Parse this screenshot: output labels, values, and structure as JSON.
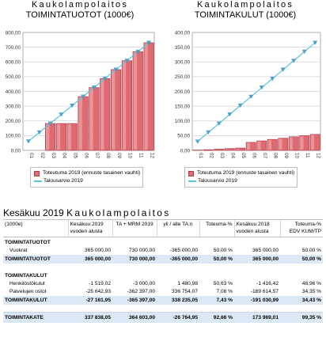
{
  "charts": [
    {
      "title1": "Kaukolampolaitos",
      "title2": "TOIMINTATUOTOT (1000€)"
    },
    {
      "title1": "Kaukolampolaitos",
      "title2": "TOIMINTAKULUT (1000€)"
    }
  ],
  "legend": {
    "bar_label": "Toteutuma 2019 (ennuste tasainen vauhti)",
    "line_label": "Talousarvio 2019"
  },
  "colors": {
    "bar_fill": "#e06a72",
    "bar_dark": "#b03a48",
    "line": "#5bc4e0",
    "marker": "#4aa8d0"
  },
  "chart_data": [
    {
      "type": "bar",
      "title": "TOIMINTATUOTOT (1000€)",
      "categories": [
        "01",
        "02",
        "03",
        "04",
        "05",
        "06",
        "07",
        "08",
        "09",
        "10",
        "11",
        "12"
      ],
      "ylim": [
        0,
        800
      ],
      "yticks": [
        "0,00",
        "100,00",
        "200,00",
        "300,00",
        "400,00",
        "500,00",
        "600,00",
        "700,00",
        "800,00"
      ],
      "grid": true,
      "series": [
        {
          "name": "Toteutuma 2019 (ennuste tasainen vauhti)",
          "type": "bar",
          "values": [
            0,
            0,
            182,
            182,
            182,
            365,
            426,
            487,
            548,
            608,
            669,
            730
          ]
        },
        {
          "name": "Talousarvio 2019",
          "type": "line",
          "values": [
            61,
            122,
            182,
            243,
            304,
            365,
            426,
            487,
            548,
            608,
            669,
            730
          ]
        }
      ]
    },
    {
      "type": "bar",
      "title": "TOIMINTAKULUT (1000€)",
      "categories": [
        "01",
        "02",
        "03",
        "04",
        "05",
        "06",
        "07",
        "08",
        "09",
        "10",
        "11",
        "12"
      ],
      "ylim": [
        0,
        400
      ],
      "yticks": [
        "0,00",
        "50,00",
        "100,00",
        "150,00",
        "200,00",
        "250,00",
        "300,00",
        "350,00",
        "400,00"
      ],
      "grid": true,
      "series": [
        {
          "name": "Toteutuma 2019 (ennuste tasainen vauhti)",
          "type": "bar",
          "values": [
            1,
            2,
            4,
            6,
            8,
            27,
            32,
            37,
            41,
            46,
            50,
            54
          ]
        },
        {
          "name": "Talousarvio 2019",
          "type": "line",
          "values": [
            30,
            61,
            91,
            122,
            152,
            182,
            213,
            243,
            274,
            304,
            335,
            365
          ]
        }
      ]
    }
  ],
  "report": {
    "title_prefix": "Kesäkuu 2019 ",
    "title_name": "Kaukolampolaitos",
    "headers": [
      "(1000e)",
      "Kesäkuu 2019\nvuoden alusta",
      "TA + MRM 2019",
      "yli / alle TA:n",
      "Toteuma-%",
      "Kesäkuu 2018\nvuoden alusta",
      "Toteuma-%\nEDV KUM/TP"
    ],
    "rows": [
      {
        "kind": "sec",
        "cells": [
          "TOIMINTATUOTOT",
          "",
          "",
          "",
          "",
          "",
          ""
        ]
      },
      {
        "kind": "item",
        "cells": [
          "Vuokrat",
          "365 000,00",
          "730 000,00",
          "-365 000,00",
          "50,00 %",
          "365 000,00",
          "50,00 %"
        ]
      },
      {
        "kind": "total",
        "cells": [
          "TOIMINTATUOTOT",
          "365 000,00",
          "730 000,00",
          "-365 000,00",
          "50,00 %",
          "365 000,00",
          "50,00 %"
        ]
      },
      {
        "kind": "gap",
        "cells": [
          "",
          "",
          "",
          "",
          "",
          "",
          ""
        ]
      },
      {
        "kind": "sec",
        "cells": [
          "TOIMINTAKULUT",
          "",
          "",
          "",
          "",
          "",
          ""
        ]
      },
      {
        "kind": "item",
        "cells": [
          "Henkilöstökulut",
          "-1 519,02",
          "-3 000,00",
          "1 480,98",
          "50,63 %",
          "-1 416,42",
          "48,96 %"
        ]
      },
      {
        "kind": "item",
        "cells": [
          "Palvelujen ostot",
          "-25 642,93",
          "-362 397,00",
          "336 754,07",
          "7,08 %",
          "-189 614,57",
          "34,35 %"
        ]
      },
      {
        "kind": "total",
        "cells": [
          "TOIMINTAKULUT",
          "-27 161,95",
          "-365 397,00",
          "338 235,05",
          "7,43 %",
          "-191 030,99",
          "34,43 %"
        ]
      },
      {
        "kind": "gap",
        "cells": [
          "",
          "",
          "",
          "",
          "",
          "",
          ""
        ]
      },
      {
        "kind": "grand",
        "cells": [
          "TOIMINTAKATE",
          "337 838,05",
          "364 603,00",
          "-26 764,95",
          "92,66 %",
          "173 969,01",
          "99,35 %"
        ]
      }
    ]
  }
}
